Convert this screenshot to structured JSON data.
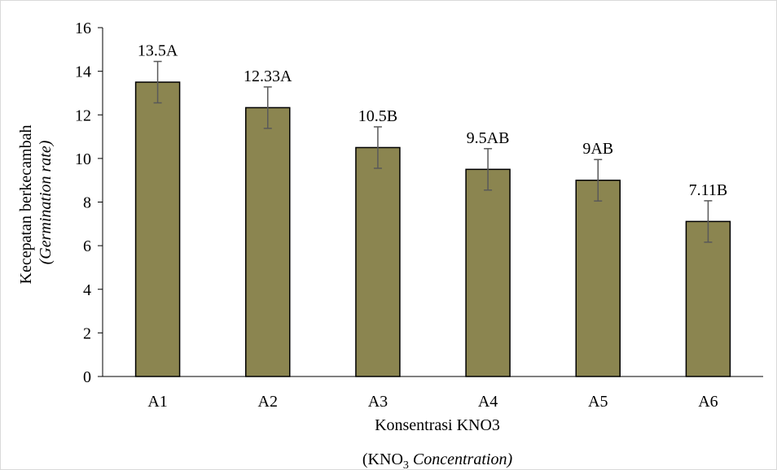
{
  "chart_data": {
    "type": "bar",
    "categories": [
      "A1",
      "A2",
      "A3",
      "A4",
      "A5",
      "A6"
    ],
    "values": [
      13.5,
      12.33,
      10.5,
      9.5,
      9.0,
      7.11
    ],
    "errors": [
      0.95,
      0.95,
      0.95,
      0.95,
      0.95,
      0.95
    ],
    "data_labels": [
      "13.5A",
      "12.33A",
      "10.5B",
      "9.5AB",
      "9AB",
      "7.11B"
    ],
    "title": "",
    "xlabel": {
      "line1": "Konsentrasi KNO3",
      "line2_prefix": "(KNO",
      "line2_sub": "3",
      "line2_italic": "Concentration)"
    },
    "ylabel": {
      "line1": "Kecepatan berkecambah",
      "line2": "(Germination rate)"
    },
    "ylim": [
      0,
      16
    ],
    "yticks": [
      0,
      2,
      4,
      6,
      8,
      10,
      12,
      14,
      16
    ],
    "grid": false,
    "legend": "none",
    "colors": {
      "bar_fill": "#8b8550",
      "bar_stroke": "#000000",
      "error_bar": "#595959",
      "axis": "#000000"
    }
  }
}
